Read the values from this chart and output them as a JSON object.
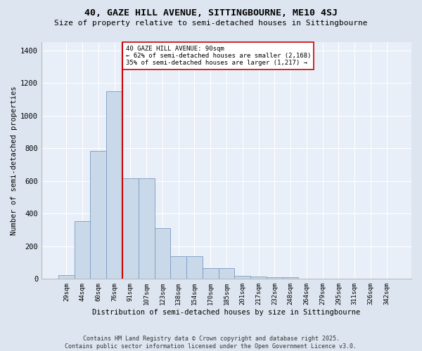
{
  "title_line1": "40, GAZE HILL AVENUE, SITTINGBOURNE, ME10 4SJ",
  "title_line2": "Size of property relative to semi-detached houses in Sittingbourne",
  "xlabel": "Distribution of semi-detached houses by size in Sittingbourne",
  "ylabel": "Number of semi-detached properties",
  "categories": [
    "29sqm",
    "44sqm",
    "60sqm",
    "76sqm",
    "91sqm",
    "107sqm",
    "123sqm",
    "138sqm",
    "154sqm",
    "170sqm",
    "185sqm",
    "201sqm",
    "217sqm",
    "232sqm",
    "248sqm",
    "264sqm",
    "279sqm",
    "295sqm",
    "311sqm",
    "326sqm",
    "342sqm"
  ],
  "bar_values": [
    25,
    355,
    785,
    1150,
    615,
    615,
    310,
    140,
    140,
    65,
    65,
    20,
    15,
    10,
    10,
    0,
    0,
    0,
    0,
    0,
    0
  ],
  "bar_color": "#c9d9ea",
  "bar_edge_color": "#7a9abf",
  "vline_x_idx": 4,
  "vline_color": "#cc0000",
  "annotation_title": "40 GAZE HILL AVENUE: 90sqm",
  "annotation_line2": "← 62% of semi-detached houses are smaller (2,168)",
  "annotation_line3": "35% of semi-detached houses are larger (1,217) →",
  "annotation_box_color": "#ffffff",
  "annotation_box_edge": "#cc0000",
  "ylim": [
    0,
    1450
  ],
  "yticks": [
    0,
    200,
    400,
    600,
    800,
    1000,
    1200,
    1400
  ],
  "footer_line1": "Contains HM Land Registry data © Crown copyright and database right 2025.",
  "footer_line2": "Contains public sector information licensed under the Open Government Licence v3.0.",
  "bg_color": "#dde6f0",
  "plot_bg_color": "#e8eff8"
}
